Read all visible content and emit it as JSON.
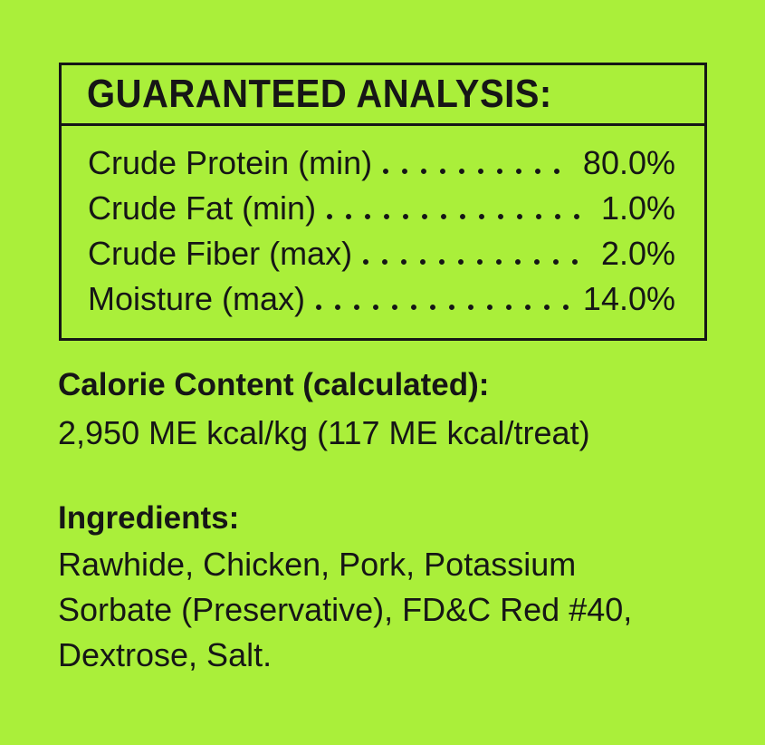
{
  "page": {
    "background_color": "#aaef3a",
    "text_color": "#161616",
    "border_color": "#161616"
  },
  "guaranteed_analysis": {
    "title": "GUARANTEED ANALYSIS:",
    "rows": [
      {
        "label": "Crude Protein (min)",
        "value": "80.0%"
      },
      {
        "label": "Crude Fat (min)",
        "value": "1.0%"
      },
      {
        "label": "Crude Fiber (max)",
        "value": "2.0%"
      },
      {
        "label": "Moisture (max)",
        "value": "14.0%"
      }
    ]
  },
  "calorie_content": {
    "heading": "Calorie Content (calculated):",
    "value": "2,950 ME kcal/kg (117 ME kcal/treat)"
  },
  "ingredients": {
    "heading": "Ingredients:",
    "full_text": "Rawhide, Chicken, Pork, Potassium Sorbate (Preservative), FD&C Red #40, Dextrose, Salt.",
    "lines": [
      "Rawhide, Chicken, Pork, Potassium",
      "Sorbate (Preservative), FD&C Red #40,",
      "Dextrose, Salt."
    ]
  }
}
